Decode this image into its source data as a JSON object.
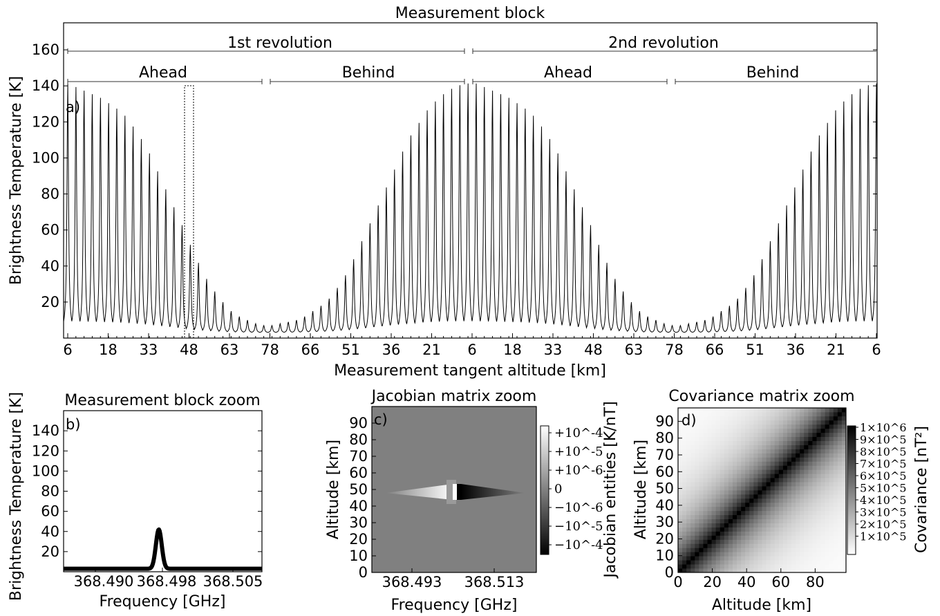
{
  "chart_data": [
    {
      "id": "a",
      "type": "line",
      "panel_label": "a)",
      "title": "Measurement block",
      "xlabel": "Measurement tangent altitude [km]",
      "ylabel": "Brightness Temperature [K]",
      "ylim": [
        0,
        175
      ],
      "yticks": [
        20,
        40,
        60,
        80,
        100,
        120,
        140,
        160
      ],
      "xtick_labels": [
        "6",
        "18",
        "33",
        "48",
        "63",
        "78",
        "66",
        "51",
        "36",
        "21",
        "6",
        "18",
        "33",
        "48",
        "63",
        "78",
        "66",
        "51",
        "36",
        "21",
        "6"
      ],
      "tangent_altitudes_ahead": [
        6,
        9,
        12,
        15,
        18,
        21,
        24,
        27,
        30,
        33,
        36,
        39,
        42,
        45,
        48,
        51,
        54,
        57,
        60,
        63,
        66,
        69,
        72,
        75,
        78
      ],
      "tangent_altitudes_behind": [
        78,
        75,
        72,
        69,
        66,
        63,
        60,
        57,
        54,
        51,
        48,
        45,
        42,
        39,
        36,
        33,
        30,
        27,
        24,
        21,
        18,
        15,
        12,
        9,
        6
      ],
      "series": [
        {
          "peak_values_ahead_rev1": [
            142,
            140,
            138,
            136,
            134,
            131,
            128,
            124,
            118,
            111,
            103,
            93,
            83,
            73,
            63,
            52,
            42,
            33,
            26,
            20,
            15,
            12,
            10,
            8,
            7
          ],
          "peak_values_behind_rev1": [
            7,
            8,
            9,
            10,
            12,
            15,
            18,
            22,
            28,
            35,
            44,
            54,
            64,
            74,
            84,
            94,
            104,
            113,
            120,
            127,
            132,
            136,
            139,
            141,
            142
          ],
          "peak_values_ahead_rev2": [
            142,
            140,
            138,
            136,
            134,
            131,
            128,
            124,
            118,
            111,
            103,
            93,
            83,
            73,
            63,
            52,
            42,
            33,
            26,
            20,
            15,
            12,
            10,
            8,
            7
          ],
          "peak_values_behind_rev2": [
            7,
            8,
            9,
            10,
            12,
            15,
            18,
            22,
            28,
            35,
            44,
            54,
            64,
            74,
            84,
            94,
            104,
            113,
            120,
            127,
            132,
            136,
            139,
            141,
            142
          ],
          "baseline": 3
        }
      ],
      "brackets": {
        "revolutions": [
          "1st revolution",
          "2nd revolution"
        ],
        "directions": [
          "Ahead",
          "Behind",
          "Ahead",
          "Behind"
        ]
      }
    },
    {
      "id": "b",
      "type": "line",
      "panel_label": "b)",
      "title": "Measurement block zoom",
      "xlabel": "Frequency [GHz]",
      "ylabel": "Brightness Temperature [K]",
      "ylim": [
        0,
        160
      ],
      "yticks": [
        20,
        40,
        60,
        80,
        100,
        120,
        140
      ],
      "xtick_labels": [
        "368.490",
        "368.498",
        "368.505"
      ],
      "series": [
        {
          "peak_value": 42,
          "baseline": 3,
          "center_fraction": 0.48
        }
      ]
    },
    {
      "id": "c",
      "type": "heatmap",
      "panel_label": "c)",
      "title": "Jacobian matrix zoom",
      "xlabel": "Frequency [GHz]",
      "ylabel": "Altitude [km]",
      "yticks": [
        0,
        10,
        20,
        30,
        40,
        50,
        60,
        70,
        80,
        90
      ],
      "xtick_labels": [
        "368.493",
        "368.513"
      ],
      "colorbar_label": "Jacobian entities [K/nT]",
      "colorbar_ticks": [
        "+10^-4",
        "+10^-5",
        "+10^-6",
        "0",
        "−10^-6",
        "−10^-5",
        "−10^-4"
      ],
      "feature_altitude_km": 48
    },
    {
      "id": "d",
      "type": "heatmap",
      "panel_label": "d)",
      "title": "Covariance matrix zoom",
      "xlabel": "Altitude [km]",
      "ylabel": "Altitude [km]",
      "yticks": [
        0,
        10,
        20,
        30,
        40,
        50,
        60,
        70,
        80,
        90
      ],
      "xticks": [
        0,
        20,
        40,
        60,
        80
      ],
      "colorbar_label": "Covariance [nT²]",
      "colorbar_ticks": [
        "1×10^6",
        "9×10^5",
        "8×10^5",
        "7×10^5",
        "6×10^5",
        "5×10^5",
        "4×10^5",
        "3×10^5",
        "2×10^5",
        "1×10^5"
      ]
    }
  ],
  "colors": {
    "line": "#000000",
    "jacobian_background": "#808080",
    "diagonal": "#000000",
    "offdiagonal": "#ffffff"
  }
}
